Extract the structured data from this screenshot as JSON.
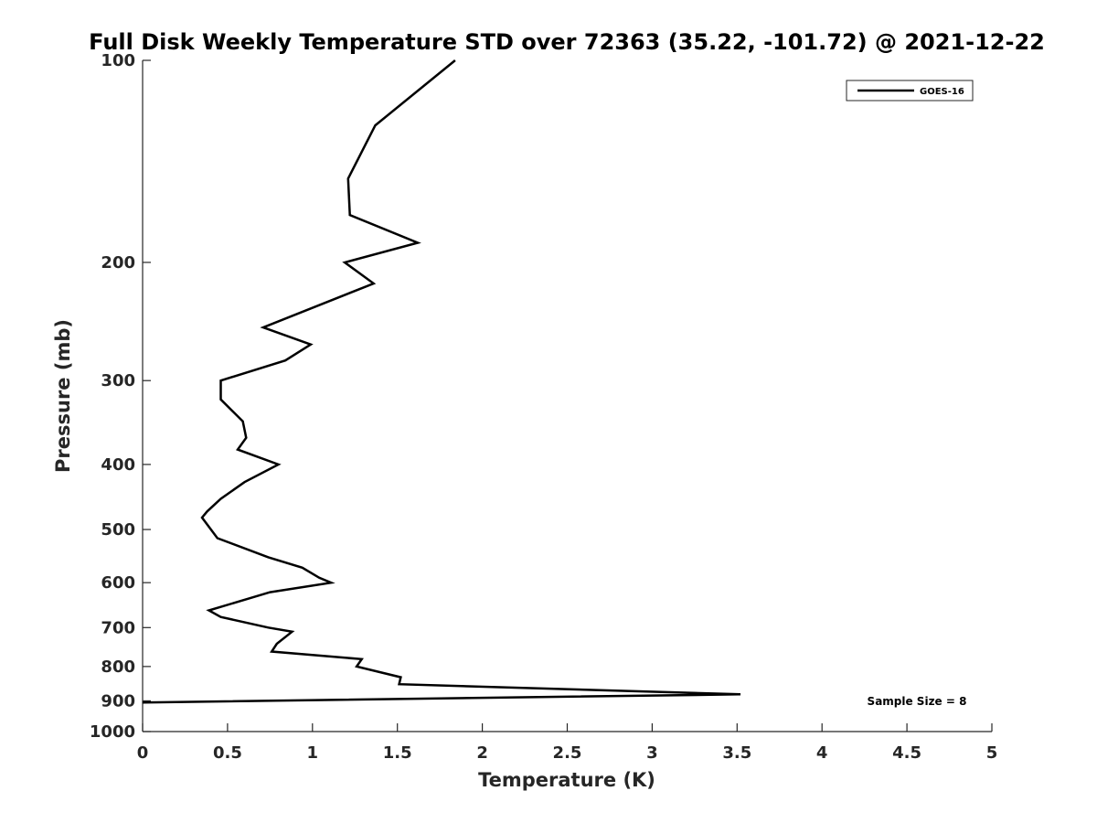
{
  "chart_data": {
    "type": "line",
    "title": "Full Disk Weekly Temperature STD over 72363 (35.22, -101.72) @ 2021-12-22",
    "xlabel": "Temperature (K)",
    "ylabel": "Pressure (mb)",
    "xlim": [
      0,
      5
    ],
    "ylim": [
      100,
      1000
    ],
    "y_scale": "log",
    "y_reversed": true,
    "grid": false,
    "legend_position": "top-right",
    "x_ticks": [
      "0",
      "0.5",
      "1",
      "1.5",
      "2",
      "2.5",
      "3",
      "3.5",
      "4",
      "4.5",
      "5"
    ],
    "y_ticks": [
      "100",
      "200",
      "300",
      "400",
      "500",
      "600",
      "700",
      "800",
      "900",
      "1000"
    ],
    "series": [
      {
        "name": "GOES-16",
        "color": "#000000",
        "points": [
          {
            "x": 1.84,
            "y": 100
          },
          {
            "x": 1.37,
            "y": 125
          },
          {
            "x": 1.21,
            "y": 150
          },
          {
            "x": 1.22,
            "y": 170
          },
          {
            "x": 1.62,
            "y": 187
          },
          {
            "x": 1.19,
            "y": 200
          },
          {
            "x": 1.36,
            "y": 215
          },
          {
            "x": 0.71,
            "y": 250
          },
          {
            "x": 0.99,
            "y": 265
          },
          {
            "x": 0.84,
            "y": 280
          },
          {
            "x": 0.46,
            "y": 300
          },
          {
            "x": 0.46,
            "y": 320
          },
          {
            "x": 0.59,
            "y": 345
          },
          {
            "x": 0.61,
            "y": 365
          },
          {
            "x": 0.56,
            "y": 380
          },
          {
            "x": 0.8,
            "y": 400
          },
          {
            "x": 0.6,
            "y": 425
          },
          {
            "x": 0.46,
            "y": 450
          },
          {
            "x": 0.38,
            "y": 470
          },
          {
            "x": 0.35,
            "y": 480
          },
          {
            "x": 0.44,
            "y": 515
          },
          {
            "x": 0.74,
            "y": 550
          },
          {
            "x": 0.94,
            "y": 570
          },
          {
            "x": 1.04,
            "y": 590
          },
          {
            "x": 1.11,
            "y": 600
          },
          {
            "x": 0.75,
            "y": 620
          },
          {
            "x": 0.39,
            "y": 660
          },
          {
            "x": 0.46,
            "y": 675
          },
          {
            "x": 0.74,
            "y": 700
          },
          {
            "x": 0.88,
            "y": 710
          },
          {
            "x": 0.79,
            "y": 740
          },
          {
            "x": 0.76,
            "y": 760
          },
          {
            "x": 1.29,
            "y": 780
          },
          {
            "x": 1.26,
            "y": 800
          },
          {
            "x": 1.52,
            "y": 830
          },
          {
            "x": 1.51,
            "y": 850
          },
          {
            "x": 3.52,
            "y": 880
          },
          {
            "x": 0.0,
            "y": 905
          }
        ]
      }
    ],
    "annotations": [
      {
        "text": "Sample Size = 8",
        "position": "bottom-right"
      }
    ]
  }
}
